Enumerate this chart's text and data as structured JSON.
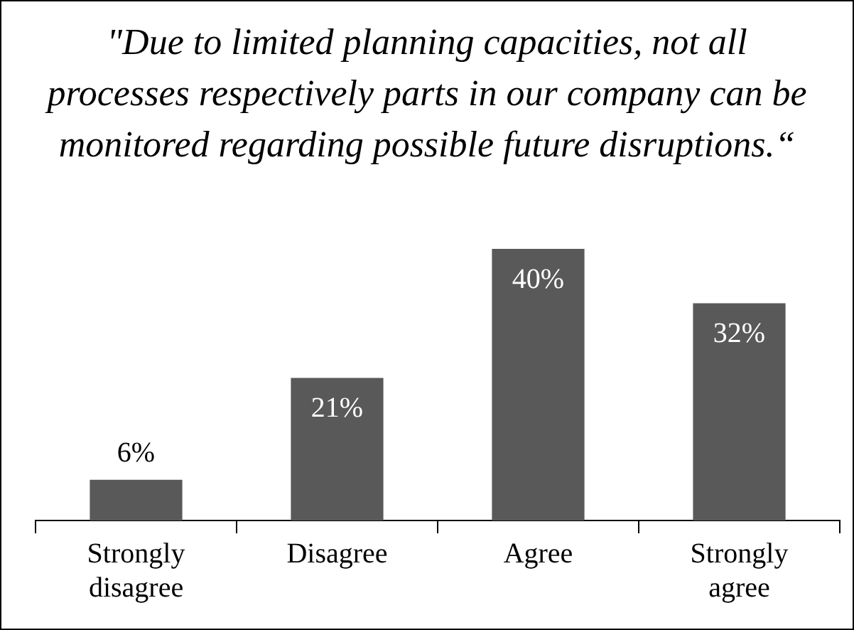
{
  "chart_data": {
    "type": "bar",
    "title": "\"Due to limited planning capacities, not all processes respectively parts in our company can be monitored regarding possible future disruptions.“",
    "categories": [
      "Strongly disagree",
      "Disagree",
      "Agree",
      "Strongly agree"
    ],
    "values": [
      6,
      21,
      40,
      32
    ],
    "color": "#595959",
    "value_labels": [
      "6%",
      "21%",
      "40%",
      "32%"
    ],
    "tick_labels": "x",
    "grid": false,
    "legend": false
  }
}
